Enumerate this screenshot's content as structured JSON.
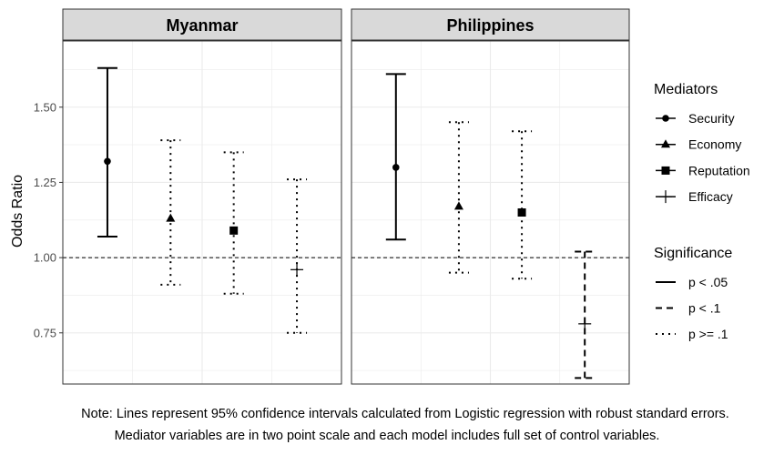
{
  "chart_data": {
    "type": "errorbar",
    "ylabel": "Odds Ratio",
    "ylim": [
      0.58,
      1.72
    ],
    "yticks": [
      0.75,
      1.0,
      1.25,
      1.5
    ],
    "ytick_labels": [
      "0.75",
      "1.00",
      "1.25",
      "1.50"
    ],
    "reference_line": 1.0,
    "grid": true,
    "panels": [
      {
        "name": "Myanmar",
        "points": [
          {
            "mediator": "Security",
            "estimate": 1.32,
            "lower": 1.07,
            "upper": 1.63,
            "significance": "p < .05"
          },
          {
            "mediator": "Economy",
            "estimate": 1.13,
            "lower": 0.91,
            "upper": 1.39,
            "significance": "p >= .1"
          },
          {
            "mediator": "Reputation",
            "estimate": 1.09,
            "lower": 0.88,
            "upper": 1.35,
            "significance": "p >= .1"
          },
          {
            "mediator": "Efficacy",
            "estimate": 0.96,
            "lower": 0.75,
            "upper": 1.26,
            "significance": "p >= .1"
          }
        ]
      },
      {
        "name": "Philippines",
        "points": [
          {
            "mediator": "Security",
            "estimate": 1.3,
            "lower": 1.06,
            "upper": 1.61,
            "significance": "p < .05"
          },
          {
            "mediator": "Economy",
            "estimate": 1.17,
            "lower": 0.95,
            "upper": 1.45,
            "significance": "p >= .1"
          },
          {
            "mediator": "Reputation",
            "estimate": 1.15,
            "lower": 0.93,
            "upper": 1.42,
            "significance": "p >= .1"
          },
          {
            "mediator": "Efficacy",
            "estimate": 0.78,
            "lower": 0.6,
            "upper": 1.02,
            "significance": "p < .1"
          }
        ]
      }
    ],
    "legend": {
      "placement": "right",
      "mediators_title": "Mediators",
      "mediators": [
        {
          "name": "Security",
          "shape": "circle"
        },
        {
          "name": "Economy",
          "shape": "triangle"
        },
        {
          "name": "Reputation",
          "shape": "square"
        },
        {
          "name": "Efficacy",
          "shape": "plus"
        }
      ],
      "significance_title": "Significance",
      "significance": [
        {
          "name": "p < .05",
          "linetype": "solid"
        },
        {
          "name": "p < .1",
          "linetype": "dashed"
        },
        {
          "name": "p >= .1",
          "linetype": "dotted"
        }
      ]
    },
    "colors": {
      "strip_fill": "#d9d9d9",
      "grid": "#ebebeb",
      "ink": "#000000",
      "tick_text": "#4d4d4d"
    }
  },
  "note": {
    "line1": "Note: Lines represent 95% confidence intervals calculated from Logistic regression with robust standard errors.",
    "line2": "Mediator variables are in two point scale and each model includes full set of control variables."
  }
}
